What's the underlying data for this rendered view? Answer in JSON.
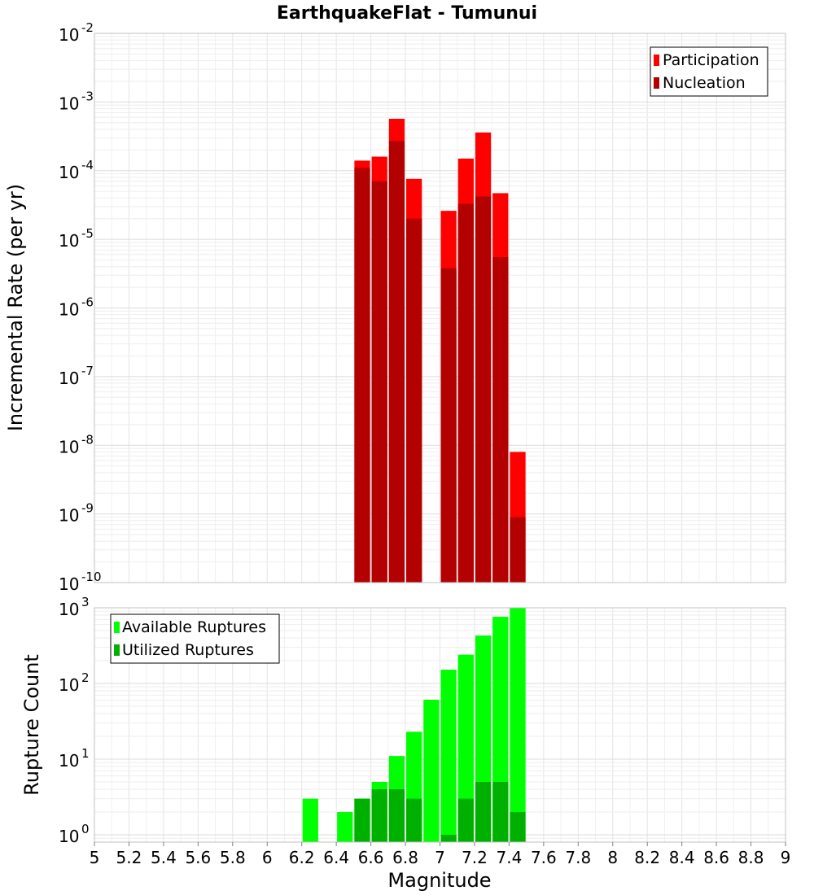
{
  "chart_data": [
    {
      "type": "bar",
      "title": "EarthquakeFlat - Tumunui",
      "ylabel": "Incremental Rate (per yr)",
      "xlabel": "",
      "x_range": [
        5,
        9
      ],
      "y_scale": "log",
      "ylim": [
        1e-10,
        0.01
      ],
      "y_tick_exponents": [
        "-10",
        "-9",
        "-8",
        "-7",
        "-6",
        "-5",
        "-4",
        "-3",
        "-2"
      ],
      "y_tick_base": "10",
      "bar_width": 0.1,
      "grid": true,
      "legend_position": "top-right",
      "series": [
        {
          "name": "Participation",
          "color": "#ff0000",
          "x": [
            6.55,
            6.65,
            6.75,
            6.85,
            7.05,
            7.15,
            7.25,
            7.35,
            7.45
          ],
          "values": [
            0.00014,
            0.00016,
            0.00057,
            7.6e-05,
            2.6e-05,
            0.00015,
            0.00036,
            4.7e-05,
            8e-09
          ]
        },
        {
          "name": "Nucleation",
          "color": "#b30000",
          "x": [
            6.55,
            6.65,
            6.75,
            6.85,
            7.05,
            7.15,
            7.25,
            7.35,
            7.45
          ],
          "values": [
            0.00011,
            7e-05,
            0.00027,
            2e-05,
            3.8e-06,
            3.3e-05,
            4.2e-05,
            5.5e-06,
            9e-10
          ]
        }
      ]
    },
    {
      "type": "bar",
      "title": "",
      "ylabel": "Rupture Count",
      "xlabel": "Magnitude",
      "x_range": [
        5,
        9
      ],
      "x_ticks": [
        "5",
        "5.2",
        "5.4",
        "5.6",
        "5.8",
        "6",
        "6.2",
        "6.4",
        "6.6",
        "6.8",
        "7",
        "7.2",
        "7.4",
        "7.6",
        "7.8",
        "8",
        "8.2",
        "8.4",
        "8.6",
        "8.8",
        "9"
      ],
      "y_scale": "log",
      "ylim": [
        0.8,
        1000
      ],
      "y_tick_exponents": [
        "0",
        "1",
        "2",
        "3"
      ],
      "y_tick_base": "10",
      "bar_width": 0.1,
      "grid": true,
      "legend_position": "top-left",
      "series": [
        {
          "name": "Available Ruptures",
          "color": "#00ff00",
          "x": [
            6.25,
            6.45,
            6.55,
            6.65,
            6.75,
            6.85,
            6.95,
            7.05,
            7.15,
            7.25,
            7.35,
            7.45
          ],
          "values": [
            3,
            2,
            3,
            5,
            11,
            23,
            61,
            152,
            240,
            430,
            760,
            1000
          ]
        },
        {
          "name": "Utilized Ruptures",
          "color": "#00b000",
          "x": [
            6.55,
            6.65,
            6.75,
            6.85,
            7.05,
            7.15,
            7.25,
            7.35,
            7.45
          ],
          "values": [
            3,
            4,
            4,
            3,
            1,
            3,
            5,
            5,
            2
          ]
        }
      ]
    }
  ]
}
